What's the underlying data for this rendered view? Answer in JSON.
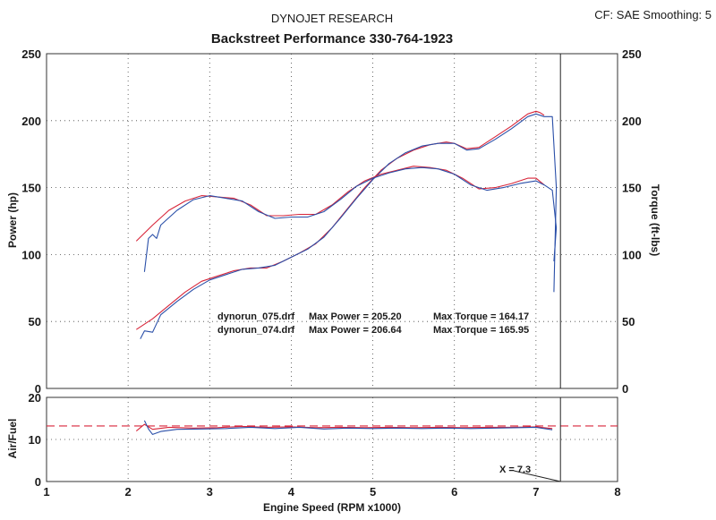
{
  "header": {
    "company": "DYNOJET RESEARCH",
    "shop": "Backstreet Performance 330-764-1923",
    "settings": "CF: SAE  Smoothing: 5"
  },
  "colors": {
    "red": "#d8263a",
    "blue": "#2a4fa8",
    "frame": "#333333",
    "grid": "#444444",
    "afr_target": "#d8263a"
  },
  "chart_data": [
    {
      "type": "line",
      "xlabel": "Engine Speed (RPM x1000)",
      "ylabel": "Power (hp)",
      "y2label": "Torque (ft-lbs)",
      "xlim": [
        1,
        8
      ],
      "ylim": [
        0,
        250
      ],
      "y2lim": [
        0,
        250
      ],
      "x_ticks": [
        "1",
        "2",
        "3",
        "4",
        "5",
        "6",
        "7",
        "8"
      ],
      "y_ticks": [
        "0",
        "50",
        "100",
        "150",
        "200",
        "250"
      ],
      "y2_ticks": [
        "0",
        "50",
        "100",
        "150",
        "200",
        "250"
      ],
      "grid": true,
      "vline_x": 7.3,
      "annotations": [
        {
          "file": "dynorun_075.drf",
          "power_text": "Max Power = 205.20",
          "torque_text": "Max Torque = 164.17"
        },
        {
          "file": "dynorun_074.drf",
          "power_text": "Max Power = 206.64",
          "torque_text": "Max Torque = 165.95"
        }
      ],
      "series": [
        {
          "kind": "power",
          "color": "#d8263a",
          "points": [
            [
              2.1,
              44
            ],
            [
              2.3,
              52
            ],
            [
              2.5,
              62
            ],
            [
              2.7,
              72
            ],
            [
              2.9,
              80
            ],
            [
              3.1,
              84
            ],
            [
              3.3,
              88
            ],
            [
              3.5,
              90
            ],
            [
              3.7,
              90
            ],
            [
              3.9,
              95
            ],
            [
              4.1,
              101
            ],
            [
              4.3,
              108
            ],
            [
              4.5,
              120
            ],
            [
              4.7,
              135
            ],
            [
              4.9,
              150
            ],
            [
              5.1,
              163
            ],
            [
              5.3,
              172
            ],
            [
              5.5,
              178
            ],
            [
              5.7,
              182
            ],
            [
              5.9,
              184
            ],
            [
              6.0,
              183
            ],
            [
              6.15,
              179
            ],
            [
              6.3,
              180
            ],
            [
              6.5,
              188
            ],
            [
              6.7,
              196
            ],
            [
              6.9,
              205
            ],
            [
              7.0,
              207
            ],
            [
              7.05,
              206
            ],
            [
              7.1,
              204
            ]
          ]
        },
        {
          "kind": "power",
          "color": "#2a4fa8",
          "points": [
            [
              2.15,
              37
            ],
            [
              2.2,
              43
            ],
            [
              2.3,
              42
            ],
            [
              2.4,
              55
            ],
            [
              2.6,
              65
            ],
            [
              2.8,
              74
            ],
            [
              3.0,
              81
            ],
            [
              3.2,
              85
            ],
            [
              3.4,
              89
            ],
            [
              3.6,
              90
            ],
            [
              3.8,
              92
            ],
            [
              4.0,
              98
            ],
            [
              4.2,
              104
            ],
            [
              4.4,
              113
            ],
            [
              4.6,
              127
            ],
            [
              4.8,
              142
            ],
            [
              5.0,
              156
            ],
            [
              5.2,
              168
            ],
            [
              5.4,
              176
            ],
            [
              5.6,
              181
            ],
            [
              5.8,
              183
            ],
            [
              6.0,
              183
            ],
            [
              6.15,
              178
            ],
            [
              6.3,
              179
            ],
            [
              6.5,
              186
            ],
            [
              6.7,
              194
            ],
            [
              6.9,
              203
            ],
            [
              7.0,
              205
            ],
            [
              7.1,
              203
            ],
            [
              7.2,
              203
            ],
            [
              7.25,
              150
            ],
            [
              7.22,
              72
            ]
          ]
        },
        {
          "kind": "torque",
          "color": "#d8263a",
          "points": [
            [
              2.1,
              110
            ],
            [
              2.3,
              122
            ],
            [
              2.5,
              133
            ],
            [
              2.7,
              140
            ],
            [
              2.9,
              144
            ],
            [
              3.1,
              143
            ],
            [
              3.3,
              142
            ],
            [
              3.5,
              137
            ],
            [
              3.7,
              129
            ],
            [
              3.9,
              129
            ],
            [
              4.1,
              130
            ],
            [
              4.3,
              130
            ],
            [
              4.5,
              137
            ],
            [
              4.7,
              147
            ],
            [
              4.9,
              155
            ],
            [
              5.1,
              160
            ],
            [
              5.3,
              163
            ],
            [
              5.5,
              166
            ],
            [
              5.7,
              165
            ],
            [
              5.9,
              163
            ],
            [
              6.1,
              157
            ],
            [
              6.3,
              149
            ],
            [
              6.5,
              150
            ],
            [
              6.7,
              153
            ],
            [
              6.9,
              157
            ],
            [
              7.0,
              157
            ],
            [
              7.1,
              152
            ]
          ]
        },
        {
          "kind": "torque",
          "color": "#2a4fa8",
          "points": [
            [
              2.2,
              87
            ],
            [
              2.25,
              112
            ],
            [
              2.3,
              115
            ],
            [
              2.35,
              112
            ],
            [
              2.4,
              122
            ],
            [
              2.6,
              133
            ],
            [
              2.8,
              141
            ],
            [
              3.0,
              144
            ],
            [
              3.2,
              142
            ],
            [
              3.4,
              140
            ],
            [
              3.6,
              132
            ],
            [
              3.8,
              127
            ],
            [
              4.0,
              128
            ],
            [
              4.2,
              128
            ],
            [
              4.4,
              132
            ],
            [
              4.6,
              141
            ],
            [
              4.8,
              151
            ],
            [
              5.0,
              157
            ],
            [
              5.2,
              161
            ],
            [
              5.4,
              164
            ],
            [
              5.6,
              165
            ],
            [
              5.8,
              164
            ],
            [
              6.0,
              160
            ],
            [
              6.2,
              152
            ],
            [
              6.4,
              148
            ],
            [
              6.6,
              150
            ],
            [
              6.8,
              153
            ],
            [
              7.0,
              155
            ],
            [
              7.1,
              152
            ],
            [
              7.2,
              148
            ],
            [
              7.25,
              120
            ],
            [
              7.22,
              95
            ]
          ]
        }
      ]
    },
    {
      "type": "line",
      "ylabel": "Air/Fuel",
      "xlim": [
        1,
        8
      ],
      "ylim": [
        0,
        20
      ],
      "x_ticks": [
        "1",
        "2",
        "3",
        "4",
        "5",
        "6",
        "7",
        "8"
      ],
      "y_ticks": [
        "0",
        "10",
        "20"
      ],
      "grid": true,
      "target_afr": 13.2,
      "cursor": {
        "x": 7.3,
        "label": "X = 7.3"
      },
      "series": [
        {
          "color": "#d8263a",
          "points": [
            [
              2.1,
              12.0
            ],
            [
              2.2,
              13.6
            ],
            [
              2.3,
              12.4
            ],
            [
              2.5,
              12.9
            ],
            [
              2.8,
              12.7
            ],
            [
              3.1,
              12.8
            ],
            [
              3.4,
              13.1
            ],
            [
              3.7,
              12.9
            ],
            [
              4.0,
              13.0
            ],
            [
              4.3,
              12.8
            ],
            [
              4.6,
              12.9
            ],
            [
              4.9,
              12.8
            ],
            [
              5.2,
              12.9
            ],
            [
              5.5,
              12.8
            ],
            [
              5.8,
              12.9
            ],
            [
              6.1,
              12.8
            ],
            [
              6.4,
              12.9
            ],
            [
              6.7,
              12.9
            ],
            [
              7.0,
              13.0
            ],
            [
              7.2,
              12.6
            ]
          ]
        },
        {
          "color": "#2a4fa8",
          "points": [
            [
              2.2,
              14.5
            ],
            [
              2.25,
              12.5
            ],
            [
              2.3,
              11.2
            ],
            [
              2.4,
              11.9
            ],
            [
              2.6,
              12.4
            ],
            [
              2.9,
              12.5
            ],
            [
              3.2,
              12.6
            ],
            [
              3.5,
              12.9
            ],
            [
              3.8,
              12.6
            ],
            [
              4.1,
              12.9
            ],
            [
              4.4,
              12.5
            ],
            [
              4.7,
              12.7
            ],
            [
              5.0,
              12.6
            ],
            [
              5.3,
              12.7
            ],
            [
              5.6,
              12.6
            ],
            [
              5.9,
              12.7
            ],
            [
              6.2,
              12.6
            ],
            [
              6.5,
              12.7
            ],
            [
              6.8,
              12.8
            ],
            [
              7.0,
              12.9
            ],
            [
              7.2,
              12.3
            ]
          ]
        }
      ]
    }
  ]
}
